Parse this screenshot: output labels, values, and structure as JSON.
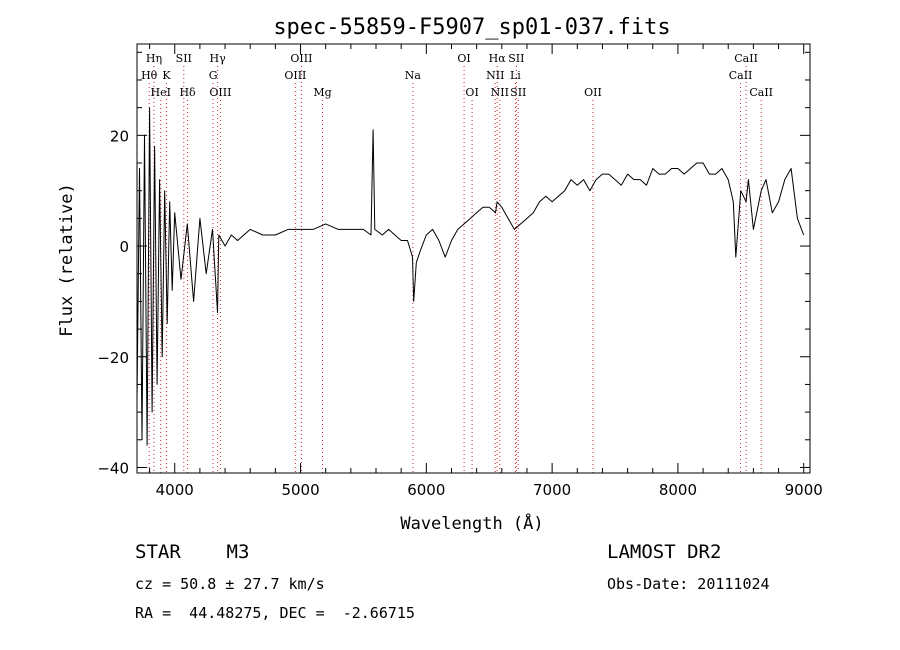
{
  "chart_data": {
    "type": "line",
    "title": "spec-55859-F5907_sp01-037.fits",
    "xlabel": "Wavelength (Å)",
    "ylabel": "Flux (relative)",
    "xlim": [
      3700,
      9050
    ],
    "ylim": [
      -41,
      36.5
    ],
    "xticks": [
      4000,
      5000,
      6000,
      7000,
      8000,
      9000
    ],
    "yticks": [
      -40,
      -20,
      0,
      20
    ],
    "ytick_labels": [
      "−40",
      "−20",
      "0",
      "20"
    ],
    "grid": false,
    "series": [
      {
        "x": [
          3700,
          3720,
          3740,
          3760,
          3780,
          3800,
          3820,
          3840,
          3860,
          3880,
          3900,
          3920,
          3940,
          3960,
          3980,
          4000,
          4050,
          4100,
          4150,
          4200,
          4250,
          4300,
          4340,
          4350,
          4400,
          4450,
          4500,
          4600,
          4700,
          4800,
          4900,
          5000,
          5100,
          5200,
          5300,
          5400,
          5500,
          5560,
          5577,
          5590,
          5650,
          5700,
          5750,
          5800,
          5850,
          5890,
          5900,
          5920,
          5950,
          6000,
          6050,
          6100,
          6150,
          6200,
          6250,
          6300,
          6350,
          6400,
          6450,
          6500,
          6550,
          6563,
          6600,
          6650,
          6700,
          6750,
          6800,
          6850,
          6900,
          6950,
          7000,
          7050,
          7100,
          7150,
          7200,
          7250,
          7300,
          7350,
          7400,
          7450,
          7500,
          7550,
          7600,
          7650,
          7700,
          7750,
          7800,
          7850,
          7900,
          7950,
          8000,
          8050,
          8100,
          8150,
          8200,
          8250,
          8300,
          8350,
          8400,
          8440,
          8460,
          8500,
          8542,
          8560,
          8600,
          8662,
          8700,
          8750,
          8800,
          8850,
          8900,
          8950,
          9000
        ],
        "y": [
          -28,
          14,
          -35,
          20,
          -36,
          25,
          -30,
          18,
          -25,
          12,
          -20,
          10,
          -14,
          8,
          -8,
          6,
          -6,
          4,
          -10,
          5,
          -5,
          3,
          -12,
          2,
          0,
          2,
          1,
          3,
          2,
          2,
          3,
          3,
          3,
          4,
          3,
          3,
          3,
          2,
          21,
          3,
          2,
          3,
          2,
          1,
          1,
          -2,
          -10,
          -3,
          -1,
          2,
          3,
          1,
          -2,
          1,
          3,
          4,
          5,
          6,
          7,
          7,
          6,
          8,
          7,
          5,
          3,
          4,
          5,
          6,
          8,
          9,
          8,
          9,
          10,
          12,
          11,
          12,
          10,
          12,
          13,
          13,
          12,
          11,
          13,
          12,
          12,
          11,
          14,
          13,
          13,
          14,
          14,
          13,
          14,
          15,
          15,
          13,
          13,
          14,
          12,
          8,
          -2,
          10,
          8,
          12,
          3,
          10,
          12,
          6,
          8,
          12,
          14,
          5,
          2
        ]
      }
    ],
    "line_markers": [
      {
        "label": "Hη",
        "x": 3835,
        "row": 1
      },
      {
        "label": "Hθ",
        "x": 3797,
        "row": 2
      },
      {
        "label": "K",
        "x": 3934,
        "row": 2
      },
      {
        "label": "HeI",
        "x": 3889,
        "row": 3
      },
      {
        "label": "SII",
        "x": 4072,
        "row": 1
      },
      {
        "label": "Hδ",
        "x": 4102,
        "row": 3
      },
      {
        "label": "Hγ",
        "x": 4341,
        "row": 1
      },
      {
        "label": "G",
        "x": 4305,
        "row": 2
      },
      {
        "label": "OIII",
        "x": 4363,
        "row": 3
      },
      {
        "label": "OIII",
        "x": 5007,
        "row": 1
      },
      {
        "label": "OIII",
        "x": 4959,
        "row": 2
      },
      {
        "label": "Mg",
        "x": 5175,
        "row": 3
      },
      {
        "label": "Na",
        "x": 5893,
        "row": 2
      },
      {
        "label": "OI",
        "x": 6300,
        "row": 1
      },
      {
        "label": "OI",
        "x": 6364,
        "row": 3
      },
      {
        "label": "Hα",
        "x": 6563,
        "row": 1
      },
      {
        "label": "SII",
        "x": 6716,
        "row": 1
      },
      {
        "label": "NII",
        "x": 6548,
        "row": 2
      },
      {
        "label": "Li",
        "x": 6708,
        "row": 2
      },
      {
        "label": "NII",
        "x": 6584,
        "row": 3
      },
      {
        "label": "SII",
        "x": 6731,
        "row": 3
      },
      {
        "label": "OII",
        "x": 7325,
        "row": 3
      },
      {
        "label": "CaII",
        "x": 8542,
        "row": 1
      },
      {
        "label": "CaII",
        "x": 8498,
        "row": 2
      },
      {
        "label": "CaII",
        "x": 8662,
        "row": 3
      }
    ]
  },
  "info": {
    "object_class": "STAR    M3",
    "survey": "LAMOST DR2",
    "redshift": "cz = 50.8 ± 27.7 km/s",
    "obs_date": "Obs-Date: 20111024",
    "coords": "RA =  44.48275, DEC =  -2.66715"
  },
  "colors": {
    "spectrum": "#000000",
    "line_marker": "#cc2222",
    "axis": "#000000"
  }
}
